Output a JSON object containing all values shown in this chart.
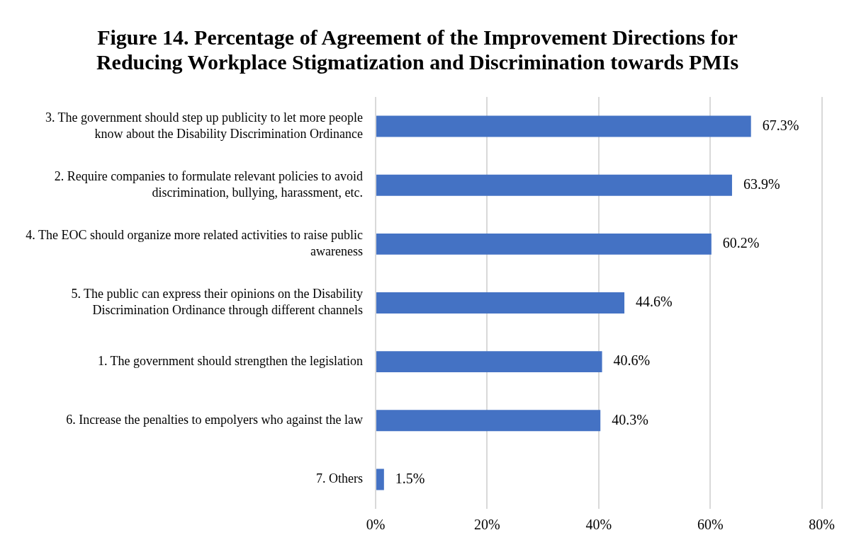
{
  "chart_data": {
    "type": "bar",
    "orientation": "horizontal",
    "title": "Figure 14. Percentage of Agreement of the Improvement Directions for Reducing Workplace Stigmatization and Discrimination towards PMIs",
    "categories": [
      "3. The government should step up publicity to let more people know about the Disability Discrimination Ordinance",
      "2. Require companies to formulate relevant policies to avoid discrimination, bullying, harassment, etc.",
      "4. The EOC should organize more related activities to raise public awareness",
      "5. The public can express their opinions on the Disability Discrimination Ordinance through different channels",
      "1. The government should strengthen the legislation",
      "6. Increase the penalties to empolyers who against the law",
      "7. Others"
    ],
    "values": [
      67.3,
      63.9,
      60.2,
      44.6,
      40.6,
      40.3,
      1.5
    ],
    "value_labels": [
      "67.3%",
      "63.9%",
      "60.2%",
      "44.6%",
      "40.6%",
      "40.3%",
      "1.5%"
    ],
    "color": "#4472c4",
    "xlim": [
      0,
      80
    ],
    "xticks": [
      {
        "value": 0,
        "label": "0%"
      },
      {
        "value": 20,
        "label": "20%"
      },
      {
        "value": 40,
        "label": "40%"
      },
      {
        "value": 60,
        "label": "60%"
      },
      {
        "value": 80,
        "label": "80%"
      }
    ],
    "grid": "x",
    "legend": false
  }
}
